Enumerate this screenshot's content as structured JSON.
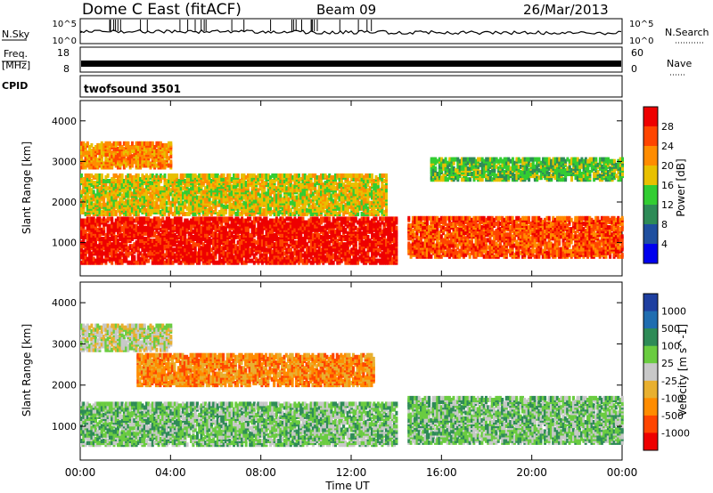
{
  "header": {
    "station": "Dome C East (fitACF)",
    "beam": "Beam 09",
    "date": "26/Mar/2013"
  },
  "strip_panels": {
    "nsky": {
      "label": "N.Sky",
      "ticks": [
        "10^5",
        "10^0"
      ],
      "right_label": "N.Search",
      "right_ticks": [
        "10^5",
        "10^0"
      ]
    },
    "freq": {
      "label_line1": "Freq.",
      "label_line2": "[MHz]",
      "ticks": [
        "18",
        "8"
      ],
      "right_label": "Nave",
      "right_ticks": [
        "60",
        "0"
      ]
    },
    "cpid": {
      "label": "CPID",
      "value": "twofsound 3501"
    }
  },
  "colors": {
    "power_scale": [
      "#0000ee",
      "#1f4f9f",
      "#2e8b57",
      "#32cd32",
      "#e8c000",
      "#ff8c00",
      "#ff4500",
      "#ee0000"
    ],
    "velocity_scale": [
      "#1e3fa0",
      "#1f6db0",
      "#2e8b57",
      "#6acc40",
      "#c8c8c8",
      "#e8b030",
      "#ff8c00",
      "#ff4500",
      "#ee0000"
    ]
  },
  "chart_data": [
    {
      "type": "heatmap",
      "name": "power",
      "ylabel": "Slant Range [km]",
      "ylim": [
        180,
        4500
      ],
      "yticks": [
        "1000",
        "2000",
        "3000",
        "4000"
      ],
      "xlim": [
        0,
        24
      ],
      "colorbar": {
        "label": "Power [dB]",
        "ticks": [
          "4",
          "8",
          "12",
          "16",
          "20",
          "24",
          "28"
        ],
        "range": [
          0,
          32
        ]
      },
      "regions": [
        {
          "t0": 0.0,
          "t1": 14.0,
          "r0": 450,
          "r1": 1550,
          "level": 28
        },
        {
          "t0": 14.5,
          "t1": 24.0,
          "r0": 600,
          "r1": 1550,
          "level": 24
        },
        {
          "t0": 0.0,
          "t1": 13.5,
          "r0": 1650,
          "r1": 2600,
          "level": 16
        },
        {
          "t0": 0.0,
          "t1": 4.0,
          "r0": 2800,
          "r1": 3400,
          "level": 22
        },
        {
          "t0": 15.5,
          "t1": 24.0,
          "r0": 2500,
          "r1": 3000,
          "level": 14
        }
      ]
    },
    {
      "type": "heatmap",
      "name": "velocity",
      "ylabel": "Slant Range [km]",
      "ylim": [
        180,
        4500
      ],
      "yticks": [
        "1000",
        "2000",
        "3000",
        "4000"
      ],
      "xlim": [
        0,
        24
      ],
      "xticks": [
        "00:00",
        "04:00",
        "08:00",
        "12:00",
        "16:00",
        "20:00",
        "00:00"
      ],
      "xlabel": "Time UT",
      "colorbar": {
        "label": "Velocity [m s^-1]",
        "ticks": [
          "1000",
          "500",
          "100",
          "25",
          "-25",
          "-100",
          "-500",
          "-1000"
        ]
      },
      "regions": [
        {
          "t0": 0.0,
          "t1": 14.0,
          "r0": 500,
          "r1": 1500,
          "level": 100
        },
        {
          "t0": 14.5,
          "t1": 24.0,
          "r0": 550,
          "r1": 1650,
          "level": 100
        },
        {
          "t0": 2.5,
          "t1": 13.0,
          "r0": 1950,
          "r1": 2700,
          "level": -100
        },
        {
          "t0": 0.0,
          "t1": 4.0,
          "r0": 2800,
          "r1": 3400,
          "level": 0
        }
      ]
    }
  ]
}
